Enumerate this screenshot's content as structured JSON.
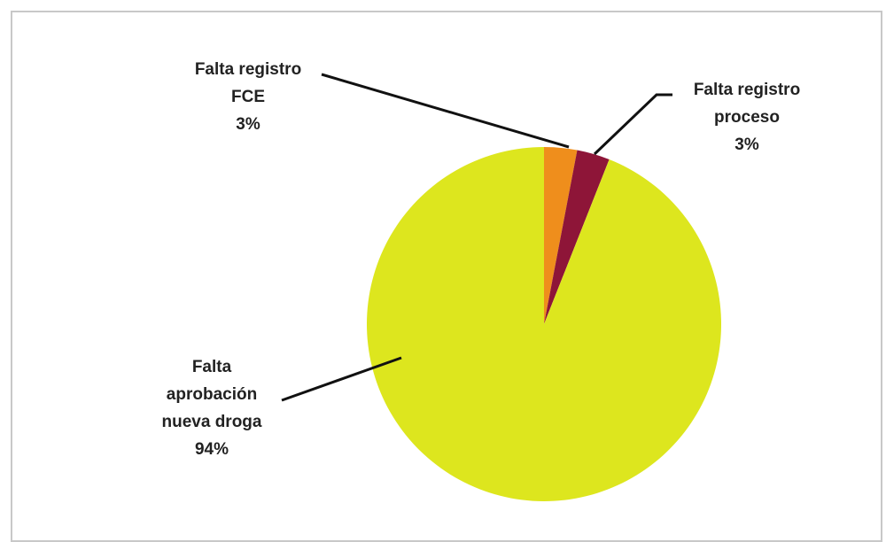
{
  "chart_data": {
    "type": "pie",
    "categories": [
      "Falta registro FCE",
      "Falta registro proceso",
      "Falta aprobación nueva droga"
    ],
    "values": [
      3,
      3,
      94
    ],
    "colors": [
      "#EF8E1C",
      "#8E1538",
      "#DDE61E"
    ],
    "data_labels": [
      {
        "lines": [
          "Falta registro",
          "FCE",
          "3%"
        ]
      },
      {
        "lines": [
          "Falta registro",
          "proceso",
          "3%"
        ]
      },
      {
        "lines": [
          "Falta",
          "aprobación",
          "nueva droga",
          "94%"
        ]
      }
    ],
    "legend": "none",
    "grid": false
  }
}
